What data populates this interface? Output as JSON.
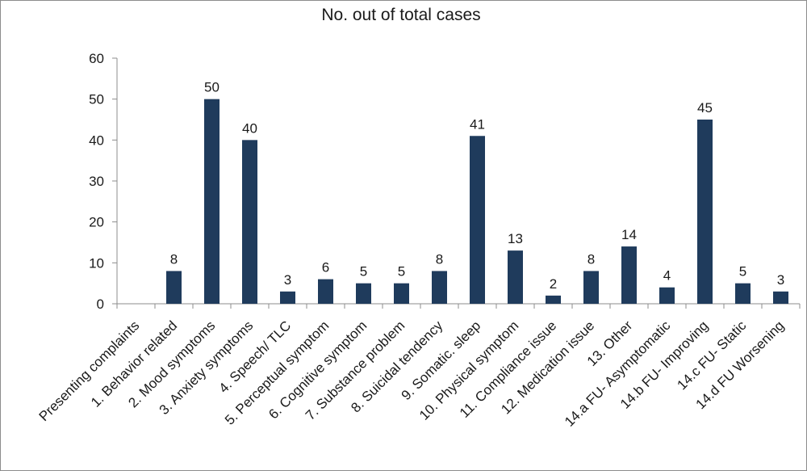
{
  "chart_data": {
    "type": "bar",
    "title": "No. out of total cases",
    "xlabel": "",
    "ylabel": "",
    "ylim": [
      0,
      60
    ],
    "yticks": [
      0,
      10,
      20,
      30,
      40,
      50,
      60
    ],
    "grid": false,
    "legend": "none",
    "bar_color": "#1f3b5c",
    "categories": [
      "Presenting complaints",
      "1. Behavior related",
      "2. Mood symptoms",
      "3. Anxiety symptoms",
      "4. Speech/ TLC",
      "5. Perceptual symptom",
      "6. Cognitive symptom",
      "7. Substance problem",
      "8. Suicidal tendency",
      "9. Somatic. sleep",
      "10. Physical symptom",
      "11. Compliance issue",
      "12. Medication issue",
      "13. Other",
      "14.a FU- Asymptomatic",
      "14.b FU- Improving",
      "14.c FU- Static",
      "14.d FU Worsening"
    ],
    "values": [
      null,
      8,
      50,
      40,
      3,
      6,
      5,
      5,
      8,
      41,
      13,
      2,
      8,
      14,
      4,
      45,
      5,
      3
    ]
  }
}
